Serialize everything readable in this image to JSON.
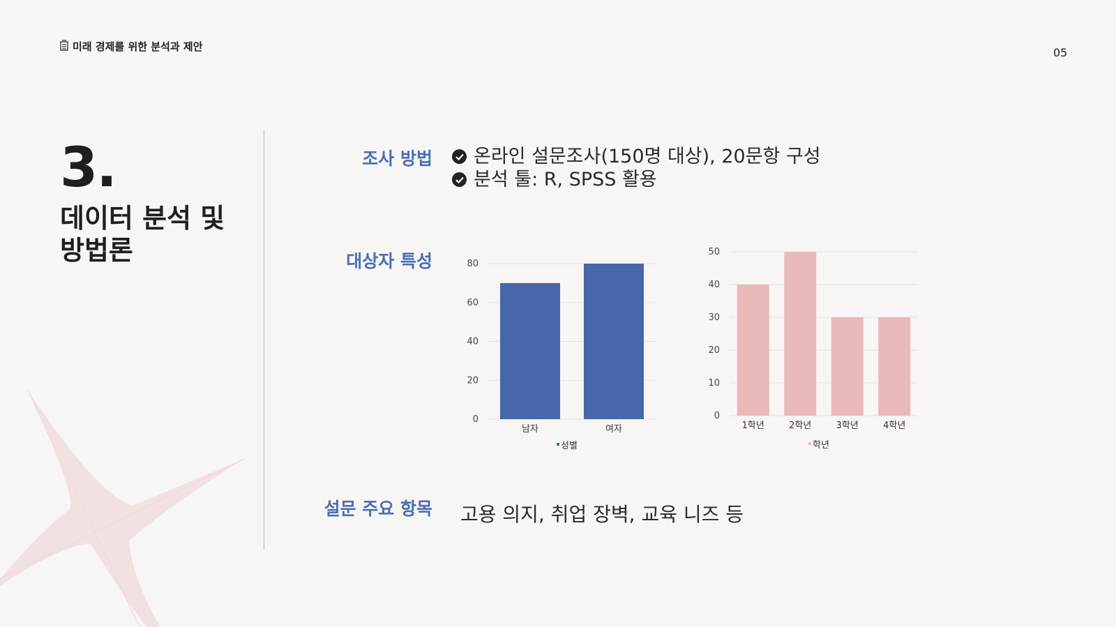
{
  "header": {
    "title": "미래 경제를 위한 분석과 제안",
    "icon": "document-icon"
  },
  "page_number": "05",
  "section": {
    "number": "3.",
    "title_line1": "데이터 분석 및",
    "title_line2": "방법론"
  },
  "labels": {
    "method": "조사 방법",
    "subjects": "대상자 특성",
    "survey": "설문 주요 항목"
  },
  "methods": [
    "온라인 설문조사(150명 대상), 20문항 구성",
    "분석 툴: R, SPSS 활용"
  ],
  "survey_items": "고용 의지, 취업 장벽, 교육 니즈 등",
  "colors": {
    "accent": "#4a6fb3",
    "bar_gender": "#4767a8",
    "bar_grade": "#e9b9b9"
  },
  "chart_data": [
    {
      "type": "bar",
      "categories": [
        "남자",
        "여자"
      ],
      "series": [
        {
          "name": "성별",
          "values": [
            70,
            80
          ]
        }
      ],
      "ylim": [
        0,
        80
      ],
      "yticks": [
        0,
        20,
        40,
        60,
        80
      ],
      "color": "#4767a8",
      "legend": "bottom"
    },
    {
      "type": "bar",
      "categories": [
        "1학년",
        "2학년",
        "3학년",
        "4학년"
      ],
      "series": [
        {
          "name": "학년",
          "values": [
            40,
            50,
            30,
            30
          ]
        }
      ],
      "ylim": [
        0,
        50
      ],
      "yticks": [
        0,
        10,
        20,
        30,
        40,
        50
      ],
      "color": "#e9b9b9",
      "legend": "bottom"
    }
  ]
}
